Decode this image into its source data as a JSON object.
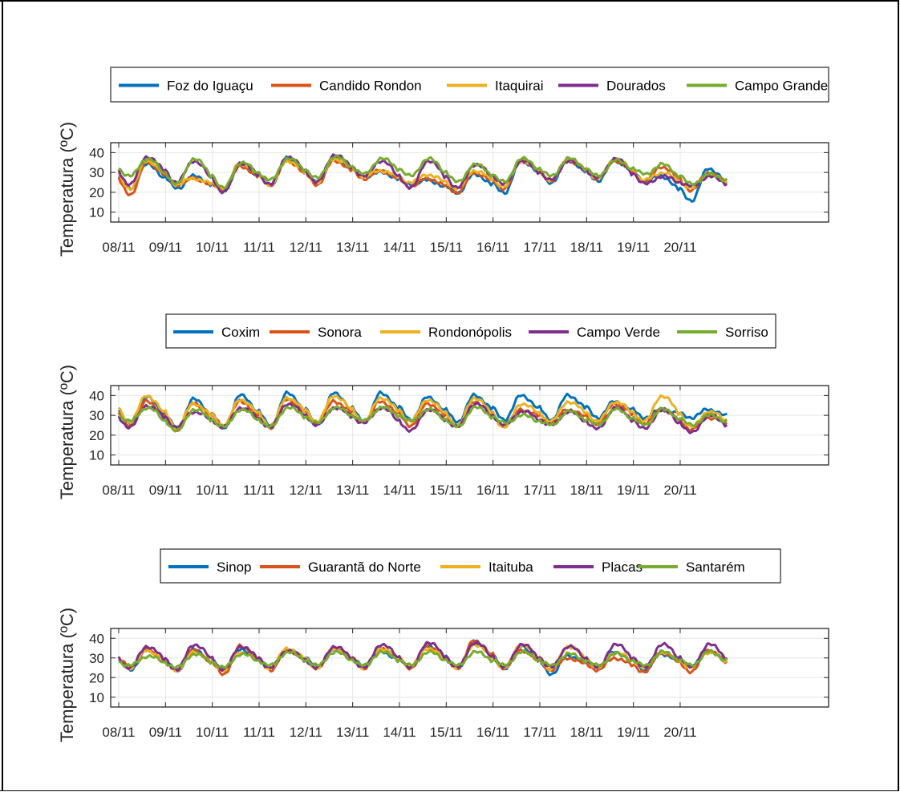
{
  "colors": {
    "blue": "#0072BD",
    "orange": "#D95319",
    "yellow": "#EDB120",
    "purple": "#7E2F8E",
    "green": "#77AC30",
    "grid": "#e6e6e6",
    "axis": "#262626"
  },
  "chart_data": [
    {
      "type": "line",
      "ylabel": "Temperatura (ºC)",
      "xlabel": "",
      "ylim": [
        5,
        45
      ],
      "yticks": [
        10,
        20,
        30,
        40
      ],
      "xlim": [
        0,
        13
      ],
      "xtick_labels": [
        "08/11",
        "09/11",
        "10/11",
        "11/11",
        "12/11",
        "13/11",
        "14/11",
        "15/11",
        "16/11",
        "17/11",
        "18/11",
        "19/11",
        "20/11"
      ],
      "grid": true,
      "legend_position": "top-outside-horizontal",
      "series": [
        {
          "name": "Foz do Iguaçu",
          "color": "blue",
          "min": [
            22,
            22,
            21,
            24,
            25,
            28,
            24,
            20,
            20,
            25,
            26,
            26,
            16,
            20
          ],
          "max": [
            34,
            28,
            34,
            37,
            37,
            30,
            26,
            29,
            36,
            36,
            36,
            28,
            32
          ]
        },
        {
          "name": "Candido Rondon",
          "color": "orange",
          "min": [
            19,
            24,
            21,
            24,
            24,
            27,
            23,
            20,
            22,
            26,
            27,
            25,
            21,
            21
          ],
          "max": [
            35,
            27,
            33,
            36,
            36,
            31,
            27,
            30,
            36,
            36,
            36,
            33,
            30
          ]
        },
        {
          "name": "Itaquirai",
          "color": "yellow",
          "min": [
            22,
            24,
            22,
            24,
            25,
            28,
            25,
            22,
            23,
            26,
            27,
            26,
            22,
            22
          ],
          "max": [
            36,
            27,
            35,
            36,
            37,
            31,
            29,
            31,
            36,
            37,
            37,
            30,
            29
          ]
        },
        {
          "name": "Dourados",
          "color": "purple",
          "min": [
            24,
            25,
            20,
            24,
            25,
            28,
            22,
            22,
            24,
            26,
            27,
            24,
            23,
            22
          ],
          "max": [
            38,
            36,
            35,
            38,
            39,
            36,
            36,
            34,
            36,
            36,
            37,
            28,
            28
          ]
        },
        {
          "name": "Campo Grande",
          "color": "green",
          "min": [
            28,
            24,
            22,
            26,
            27,
            29,
            28,
            25,
            25,
            28,
            28,
            29,
            24,
            24
          ],
          "max": [
            37,
            37,
            35,
            37,
            38,
            37,
            37,
            34,
            37,
            37,
            36,
            34,
            29
          ]
        }
      ]
    },
    {
      "type": "line",
      "ylabel": "Temperatura (ºC)",
      "xlabel": "",
      "ylim": [
        5,
        45
      ],
      "yticks": [
        10,
        20,
        30,
        40
      ],
      "xlim": [
        0,
        13
      ],
      "xtick_labels": [
        "08/11",
        "09/11",
        "10/11",
        "11/11",
        "12/11",
        "13/11",
        "14/11",
        "15/11",
        "16/11",
        "17/11",
        "18/11",
        "19/11",
        "20/11"
      ],
      "grid": true,
      "legend_position": "top-outside-horizontal",
      "series": [
        {
          "name": "Coxim",
          "color": "blue",
          "min": [
            26,
            24,
            24,
            25,
            26,
            27,
            28,
            27,
            28,
            28,
            29,
            29,
            29,
            27
          ],
          "max": [
            39,
            38,
            40,
            41,
            41,
            41,
            39,
            40,
            40,
            40,
            37,
            33,
            33
          ]
        },
        {
          "name": "Sonora",
          "color": "orange",
          "min": [
            25,
            23,
            25,
            24,
            26,
            27,
            25,
            25,
            25,
            27,
            26,
            26,
            23,
            24
          ],
          "max": [
            37,
            36,
            37,
            38,
            37,
            37,
            36,
            37,
            33,
            33,
            36,
            33,
            29
          ]
        },
        {
          "name": "Rondonópolis",
          "color": "yellow",
          "min": [
            27,
            24,
            25,
            25,
            27,
            27,
            27,
            25,
            24,
            27,
            27,
            27,
            24,
            24
          ],
          "max": [
            40,
            36,
            38,
            39,
            40,
            39,
            38,
            39,
            36,
            37,
            37,
            40,
            32
          ]
        },
        {
          "name": "Campo Verde",
          "color": "purple",
          "min": [
            24,
            24,
            24,
            24,
            25,
            26,
            22,
            24,
            25,
            25,
            23,
            23,
            21,
            22
          ],
          "max": [
            35,
            32,
            34,
            36,
            34,
            34,
            33,
            36,
            32,
            32,
            34,
            33,
            30
          ]
        },
        {
          "name": "Sorriso",
          "color": "green",
          "min": [
            27,
            22,
            24,
            24,
            26,
            27,
            27,
            24,
            26,
            25,
            25,
            25,
            25,
            25
          ],
          "max": [
            34,
            33,
            33,
            34,
            34,
            34,
            33,
            34,
            30,
            32,
            33,
            33,
            30
          ]
        }
      ]
    },
    {
      "type": "line",
      "ylabel": "Temperatura (ºC)",
      "xlabel": "",
      "ylim": [
        5,
        45
      ],
      "yticks": [
        10,
        20,
        30,
        40
      ],
      "xlim": [
        0,
        13
      ],
      "xtick_labels": [
        "08/11",
        "09/11",
        "10/11",
        "11/11",
        "12/11",
        "13/11",
        "14/11",
        "15/11",
        "16/11",
        "17/11",
        "18/11",
        "19/11",
        "20/11"
      ],
      "grid": true,
      "legend_position": "top-outside-horizontal",
      "series": [
        {
          "name": "Sinop",
          "color": "blue",
          "min": [
            24,
            24,
            24,
            25,
            26,
            26,
            26,
            25,
            25,
            22,
            25,
            24,
            26,
            22
          ],
          "max": [
            34,
            34,
            34,
            34,
            34,
            33,
            36,
            38,
            36,
            31,
            33,
            32,
            34
          ]
        },
        {
          "name": "Guarantã do Norte",
          "color": "orange",
          "min": [
            26,
            24,
            22,
            24,
            25,
            25,
            25,
            25,
            25,
            24,
            24,
            23,
            23,
            23
          ],
          "max": [
            34,
            34,
            36,
            34,
            35,
            35,
            36,
            39,
            34,
            30,
            30,
            33,
            34
          ]
        },
        {
          "name": "Itaituba",
          "color": "yellow",
          "min": [
            25,
            24,
            24,
            25,
            25,
            25,
            26,
            25,
            25,
            24,
            25,
            25,
            25,
            24
          ],
          "max": [
            34,
            33,
            33,
            35,
            35,
            35,
            35,
            37,
            37,
            36,
            33,
            33,
            33
          ]
        },
        {
          "name": "Placas",
          "color": "purple",
          "min": [
            25,
            24,
            24,
            25,
            25,
            25,
            25,
            25,
            25,
            25,
            25,
            25,
            25,
            25
          ],
          "max": [
            36,
            37,
            36,
            34,
            36,
            37,
            38,
            38,
            37,
            36,
            37,
            37,
            37
          ]
        },
        {
          "name": "Santarém",
          "color": "green",
          "min": [
            26,
            25,
            25,
            26,
            26,
            26,
            26,
            26,
            26,
            26,
            26,
            26,
            26,
            26
          ],
          "max": [
            31,
            32,
            32,
            33,
            33,
            33,
            33,
            33,
            33,
            32,
            32,
            33,
            33
          ]
        }
      ]
    }
  ]
}
